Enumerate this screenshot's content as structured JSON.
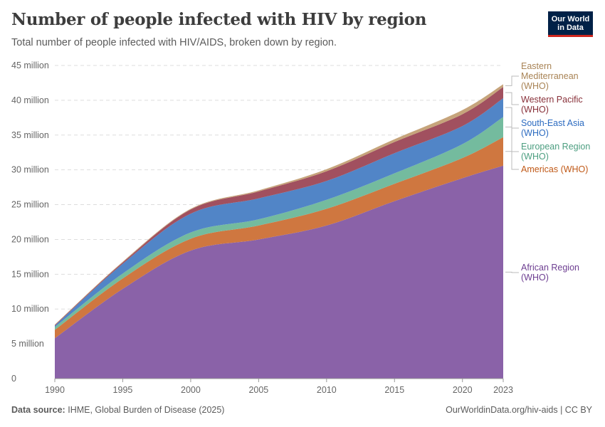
{
  "header": {
    "title": "Number of people infected with HIV by region",
    "subtitle": "Total number of people infected with HIV/AIDS, broken down by region.",
    "logo": "Our World in Data"
  },
  "footer": {
    "source_label": "Data source:",
    "source": "IHME, Global Burden of Disease (2025)",
    "link": "OurWorldinData.org/hiv-aids | CC BY"
  },
  "chart_data": {
    "type": "area",
    "stacked": true,
    "title": "Number of people infected with HIV by region",
    "xlabel": "",
    "ylabel": "",
    "x": [
      1990,
      1995,
      2000,
      2005,
      2010,
      2015,
      2020,
      2023
    ],
    "xticks": [
      "1990",
      "1995",
      "2000",
      "2005",
      "2010",
      "2015",
      "2020",
      "2023"
    ],
    "yticks": [
      "0",
      "5 million",
      "10 million",
      "15 million",
      "20 million",
      "25 million",
      "30 million",
      "35 million",
      "40 million",
      "45 million"
    ],
    "ylim": [
      0,
      45000000
    ],
    "grid": "horizontal dashed",
    "legend": "right, labels at series ends",
    "series": [
      {
        "name": "African Region (WHO)",
        "color": "#8a62a8",
        "values": [
          5800000,
          12900000,
          18400000,
          20000000,
          22000000,
          25500000,
          28800000,
          30600000
        ]
      },
      {
        "name": "Americas (WHO)",
        "color": "#cf7740",
        "values": [
          1200000,
          1500000,
          1700000,
          2000000,
          2400000,
          2500000,
          2900000,
          4100000
        ]
      },
      {
        "name": "European Region (WHO)",
        "color": "#74bb9e",
        "values": [
          400000,
          700000,
          900000,
          900000,
          1300000,
          1500000,
          2000000,
          2900000
        ]
      },
      {
        "name": "South-East Asia (WHO)",
        "color": "#5185c7",
        "values": [
          200000,
          1400000,
          2700000,
          3000000,
          2700000,
          2900000,
          2600000,
          2700000
        ]
      },
      {
        "name": "Western Pacific (WHO)",
        "color": "#a1505f",
        "values": [
          100000,
          200000,
          600000,
          1000000,
          1400000,
          1600000,
          1700000,
          1600000
        ]
      },
      {
        "name": "Eastern Mediterranean (WHO)",
        "color": "#c6a47b",
        "values": [
          50000,
          100000,
          100000,
          150000,
          300000,
          400000,
          600000,
          400000
        ]
      }
    ]
  },
  "legend_labels": [
    {
      "line1": "Eastern",
      "line2": "Mediterranean",
      "line3": "(WHO)",
      "color": "#a88355"
    },
    {
      "line1": "Western Pacific",
      "line2": "(WHO)",
      "color": "#883039"
    },
    {
      "line1": "South-East Asia",
      "line2": "(WHO)",
      "color": "#2c6bc0"
    },
    {
      "line1": "European Region",
      "line2": "(WHO)",
      "color": "#4c9e80"
    },
    {
      "line1": "Americas (WHO)",
      "color": "#c05917"
    },
    {
      "line1": "African Region",
      "line2": "(WHO)",
      "color": "#6d3e91"
    }
  ]
}
